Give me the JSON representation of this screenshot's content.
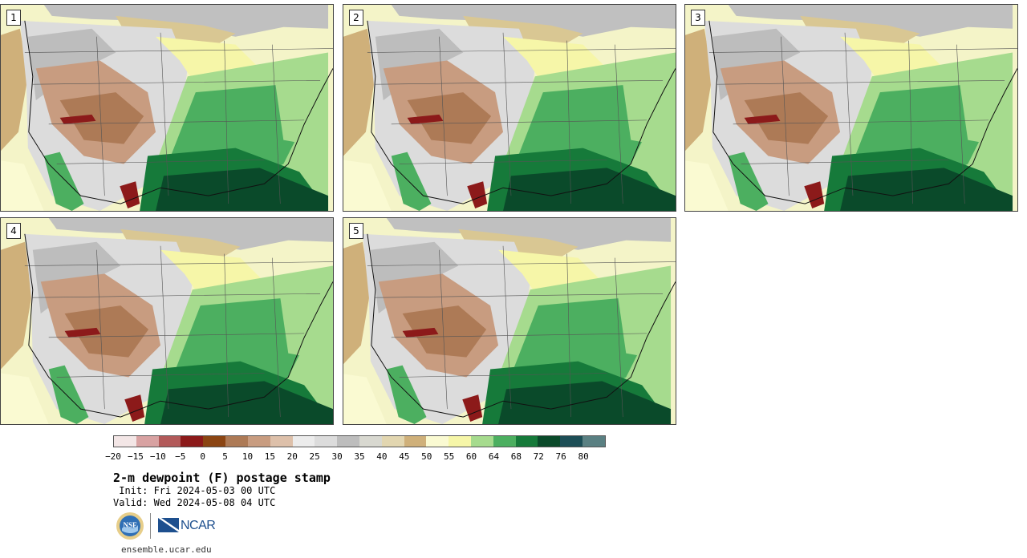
{
  "panels": [
    {
      "label": "1"
    },
    {
      "label": "2"
    },
    {
      "label": "3"
    },
    {
      "label": "4"
    },
    {
      "label": "5"
    }
  ],
  "colorbar": {
    "colors": [
      "#f3e6e6",
      "#d8a2a2",
      "#b25a5a",
      "#8c1a1a",
      "#8b4513",
      "#ad7a56",
      "#c89c80",
      "#ddc0aa",
      "#ececec",
      "#dcdcdc",
      "#bdbdbd",
      "#d8d8d0",
      "#e2d6b0",
      "#cfb07a",
      "#fafad2",
      "#f6f6a8",
      "#a6db8e",
      "#4caf60",
      "#167a3a",
      "#0a4a2a",
      "#1c4e56",
      "#5a8082"
    ],
    "ticks": [
      "−20",
      "−15",
      "−10",
      "−5",
      "0",
      "5",
      "10",
      "15",
      "20",
      "25",
      "30",
      "35",
      "40",
      "45",
      "50",
      "55",
      "60",
      "64",
      "68",
      "72",
      "76",
      "80"
    ]
  },
  "title": "2-m dewpoint (F) postage stamp",
  "init_line": " Init: Fri 2024-05-03 00 UTC",
  "valid_line": "Valid: Wed 2024-05-08 04 UTC",
  "logos": {
    "nsf": "NSF",
    "ncar": "NCAR"
  },
  "url": "ensemble.ucar.edu"
}
